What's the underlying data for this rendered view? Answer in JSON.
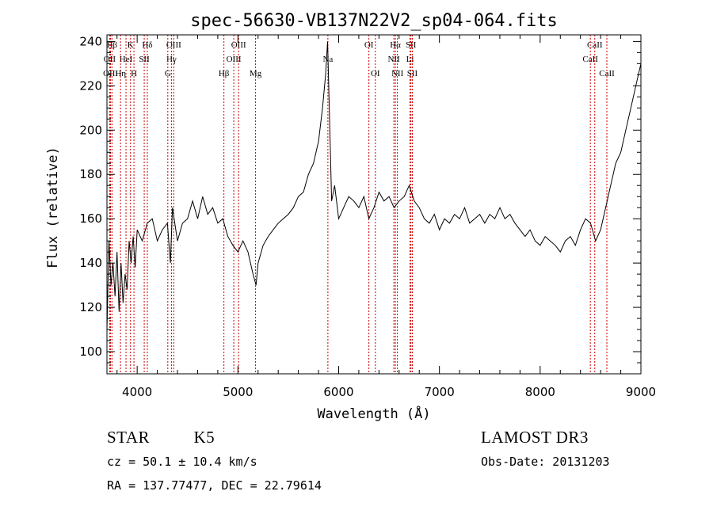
{
  "chart_data": {
    "type": "line",
    "title": "spec-56630-VB137N22V2_sp04-064.fits",
    "xlabel": "Wavelength (Å)",
    "ylabel": "Flux (relative)",
    "xlim": [
      3700,
      9000
    ],
    "ylim": [
      90,
      243
    ],
    "xticks": [
      4000,
      5000,
      6000,
      7000,
      8000,
      9000
    ],
    "yticks": [
      100,
      120,
      140,
      160,
      180,
      200,
      220,
      240
    ],
    "grid": false,
    "series": [
      {
        "color": "#000000",
        "x": [
          3700,
          3720,
          3740,
          3760,
          3780,
          3800,
          3820,
          3840,
          3860,
          3880,
          3900,
          3920,
          3940,
          3960,
          3980,
          4000,
          4050,
          4100,
          4150,
          4200,
          4250,
          4300,
          4330,
          4350,
          4400,
          4450,
          4500,
          4550,
          4600,
          4650,
          4700,
          4750,
          4800,
          4850,
          4900,
          4950,
          5000,
          5050,
          5100,
          5150,
          5180,
          5200,
          5250,
          5300,
          5350,
          5400,
          5450,
          5500,
          5550,
          5600,
          5650,
          5700,
          5750,
          5800,
          5840,
          5870,
          5890,
          5910,
          5930,
          5960,
          6000,
          6050,
          6100,
          6150,
          6200,
          6250,
          6300,
          6350,
          6400,
          6450,
          6500,
          6550,
          6600,
          6650,
          6700,
          6750,
          6800,
          6850,
          6900,
          6950,
          7000,
          7050,
          7100,
          7150,
          7200,
          7250,
          7300,
          7350,
          7400,
          7450,
          7500,
          7550,
          7600,
          7650,
          7700,
          7750,
          7800,
          7850,
          7900,
          7950,
          8000,
          8050,
          8100,
          8150,
          8200,
          8250,
          8300,
          8350,
          8400,
          8450,
          8500,
          8550,
          8600,
          8650,
          8700,
          8750,
          8800,
          8850,
          8900,
          8950,
          9000
        ],
        "values": [
          110,
          150,
          130,
          140,
          125,
          145,
          118,
          140,
          122,
          135,
          128,
          150,
          140,
          152,
          138,
          155,
          150,
          158,
          160,
          150,
          155,
          158,
          140,
          165,
          150,
          158,
          160,
          168,
          160,
          170,
          162,
          165,
          158,
          160,
          152,
          148,
          145,
          150,
          145,
          135,
          130,
          140,
          148,
          152,
          155,
          158,
          160,
          162,
          165,
          170,
          172,
          180,
          185,
          195,
          210,
          225,
          240,
          205,
          168,
          175,
          160,
          165,
          170,
          168,
          165,
          170,
          160,
          165,
          172,
          168,
          170,
          165,
          168,
          170,
          175,
          168,
          165,
          160,
          158,
          162,
          155,
          160,
          158,
          162,
          160,
          165,
          158,
          160,
          162,
          158,
          162,
          160,
          165,
          160,
          162,
          158,
          155,
          152,
          155,
          150,
          148,
          152,
          150,
          148,
          145,
          150,
          152,
          148,
          155,
          160,
          158,
          150,
          155,
          165,
          175,
          185,
          190,
          200,
          210,
          220,
          230
        ]
      }
    ],
    "line_markers": [
      {
        "label": "Hβ",
        "x": 3750,
        "row": 0
      },
      {
        "label": "OII",
        "x": 3727,
        "row": 1
      },
      {
        "label": "OIII",
        "x": 3736,
        "row": 2
      },
      {
        "label": "K",
        "x": 3934,
        "row": 0
      },
      {
        "label": "HeI",
        "x": 3889,
        "row": 1
      },
      {
        "label": "Hη",
        "x": 3835,
        "row": 2
      },
      {
        "label": "Hδ",
        "x": 4101,
        "row": 0
      },
      {
        "label": "SII",
        "x": 4070,
        "row": 1
      },
      {
        "label": "H",
        "x": 3968,
        "row": 2
      },
      {
        "label": "OIII",
        "x": 4363,
        "row": 0
      },
      {
        "label": "Hγ",
        "x": 4340,
        "row": 1
      },
      {
        "label": "G",
        "x": 4304,
        "row": 2
      },
      {
        "label": "OIII",
        "x": 5007,
        "row": 0
      },
      {
        "label": "OIII",
        "x": 4959,
        "row": 1
      },
      {
        "label": "Hβ",
        "x": 4861,
        "row": 2
      },
      {
        "label": "Mg",
        "x": 5175,
        "row": 2
      },
      {
        "label": "Na",
        "x": 5893,
        "row": 1
      },
      {
        "label": "OI",
        "x": 6300,
        "row": 0
      },
      {
        "label": "OI",
        "x": 6364,
        "row": 2
      },
      {
        "label": "Hα",
        "x": 6563,
        "row": 0
      },
      {
        "label": "SII",
        "x": 6717,
        "row": 0
      },
      {
        "label": "NII",
        "x": 6548,
        "row": 1
      },
      {
        "label": "Li",
        "x": 6708,
        "row": 1
      },
      {
        "label": "NII",
        "x": 6583,
        "row": 2
      },
      {
        "label": "SII",
        "x": 6731,
        "row": 2
      },
      {
        "label": "CaII",
        "x": 8542,
        "row": 0
      },
      {
        "label": "CaII",
        "x": 8498,
        "row": 1
      },
      {
        "label": "CaII",
        "x": 8662,
        "row": 2
      }
    ]
  },
  "info": {
    "object_class": "STAR",
    "subclass": "K5",
    "survey": "LAMOST DR3",
    "redshift_line": "cz = 50.1 ± 10.4 km/s",
    "obs_date": "Obs-Date: 20131203",
    "coords": "RA = 137.77477, DEC =  22.79614"
  }
}
